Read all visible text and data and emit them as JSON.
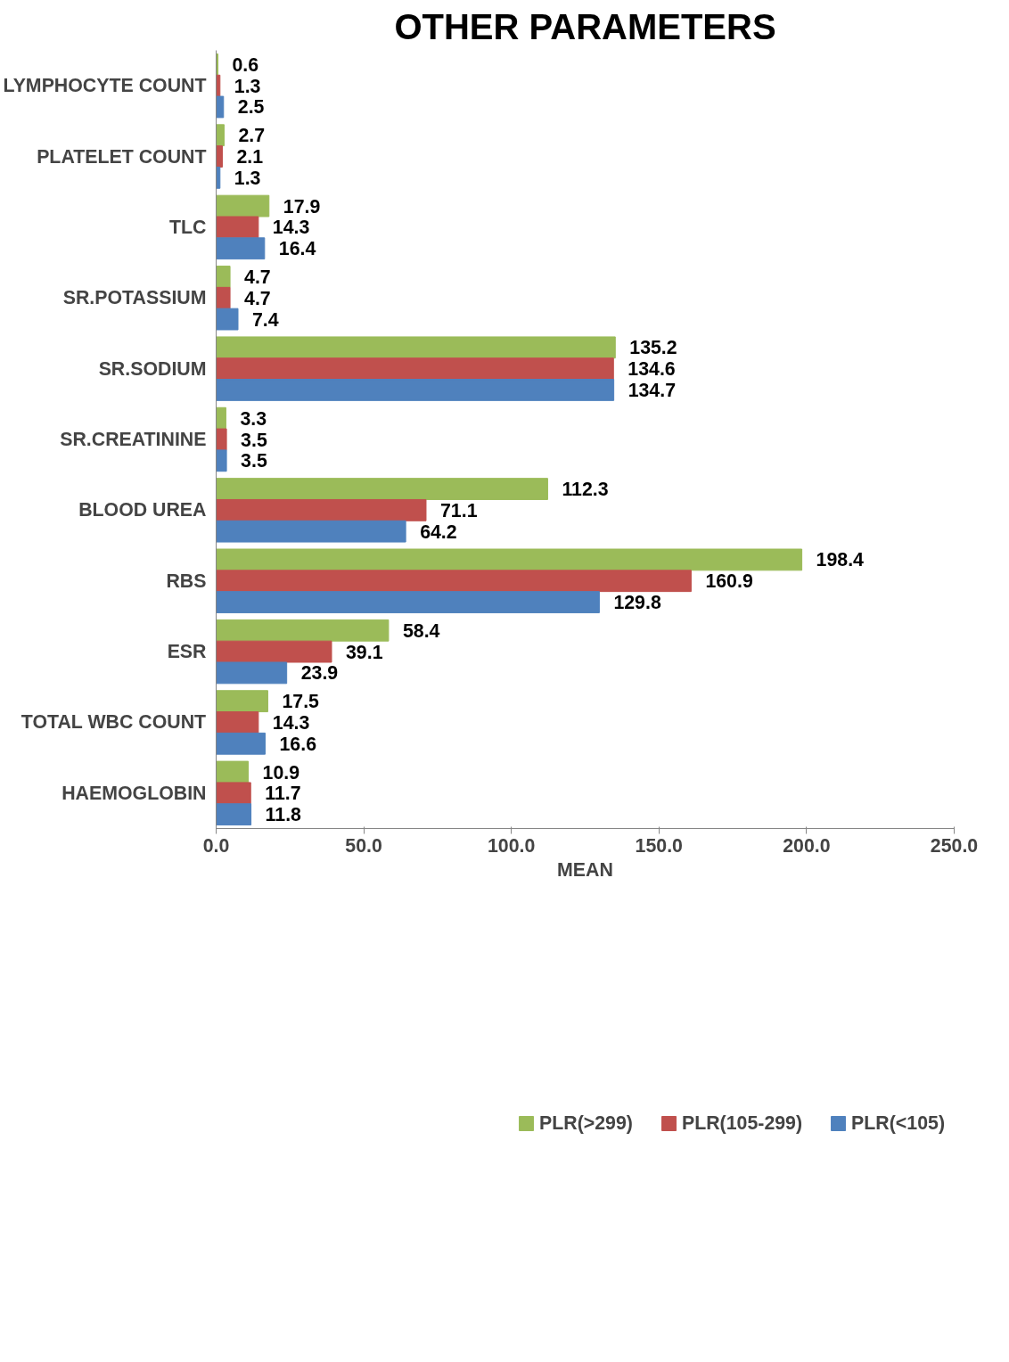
{
  "chart_data": {
    "type": "bar",
    "orientation": "horizontal",
    "title": "OTHER PARAMETERS",
    "xlabel": "MEAN",
    "categories": [
      "LYMPHOCYTE COUNT",
      "PLATELET COUNT",
      "TLC",
      "SR.POTASSIUM",
      "SR.SODIUM",
      "SR.CREATININE",
      "BLOOD UREA",
      "RBS",
      "ESR",
      "TOTAL WBC COUNT",
      "HAEMOGLOBIN"
    ],
    "series": [
      {
        "name": "PLR(>299)",
        "color": "#9bbb59",
        "values": [
          0.6,
          2.7,
          17.9,
          4.7,
          135.2,
          3.3,
          112.3,
          198.4,
          58.4,
          17.5,
          10.9
        ]
      },
      {
        "name": "PLR(105-299)",
        "color": "#c0504d",
        "values": [
          1.3,
          2.1,
          14.3,
          4.7,
          134.6,
          3.5,
          71.1,
          160.9,
          39.1,
          14.3,
          11.7
        ]
      },
      {
        "name": "PLR(<105)",
        "color": "#4f81bd",
        "values": [
          2.5,
          1.3,
          16.4,
          7.4,
          134.7,
          3.5,
          64.2,
          129.8,
          23.9,
          16.6,
          11.8
        ]
      }
    ],
    "xlim": [
      0,
      250
    ],
    "xticks": [
      {
        "value": 0,
        "label": "0.0"
      },
      {
        "value": 50,
        "label": "50.0"
      },
      {
        "value": 100,
        "label": "100.0"
      },
      {
        "value": 150,
        "label": "150.0"
      },
      {
        "value": 200,
        "label": "200.0"
      },
      {
        "value": 250,
        "label": "250.0"
      }
    ],
    "data_labels": true,
    "grid": false,
    "legend": "bottom"
  }
}
